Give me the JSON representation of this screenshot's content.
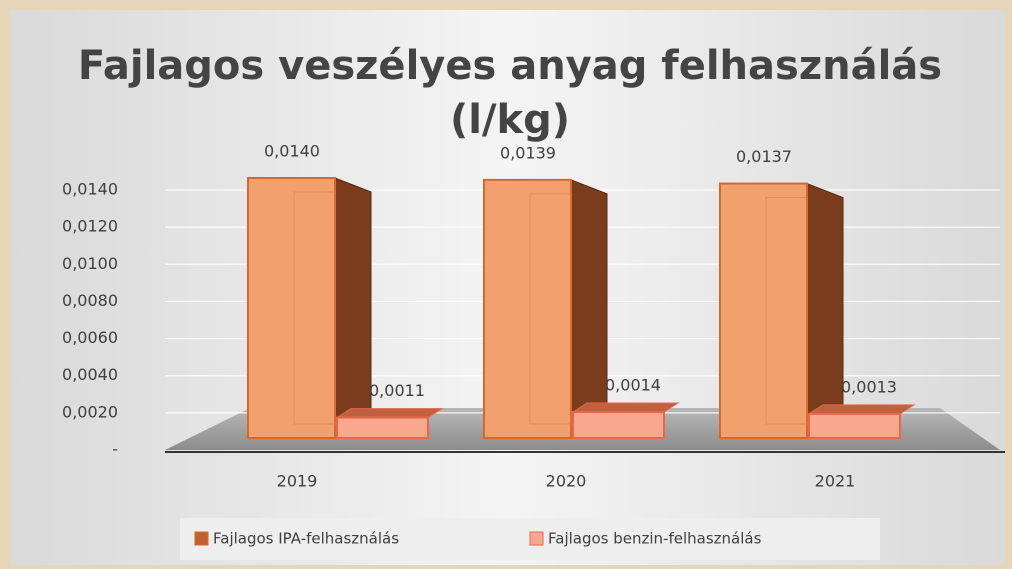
{
  "chart_data": {
    "type": "bar3d",
    "title": [
      "Fajlagos veszélyes anyag felhasználás",
      "(l/kg)"
    ],
    "categories": [
      "2019",
      "2020",
      "2021"
    ],
    "series": [
      {
        "name": "Fajlagos IPA-felhasználás",
        "color": "#f2a16e",
        "values": [
          0.014,
          0.0139,
          0.0137
        ],
        "value_labels": [
          "0,0140",
          "0,0139",
          "0,0137"
        ]
      },
      {
        "name": "Fajlagos benzin-felhasználás",
        "color": "#f7a88d",
        "values": [
          0.0011,
          0.0014,
          0.0013
        ],
        "value_labels": [
          "0,0011",
          "0,0014",
          "0,0013"
        ]
      }
    ],
    "ylim": [
      0,
      0.014
    ],
    "yticks": [
      {
        "value": 0,
        "label": "-"
      },
      {
        "value": 0.002,
        "label": "0,0020"
      },
      {
        "value": 0.004,
        "label": "0,0040"
      },
      {
        "value": 0.006,
        "label": "0,0060"
      },
      {
        "value": 0.008,
        "label": "0,0080"
      },
      {
        "value": 0.01,
        "label": "0,0100"
      },
      {
        "value": 0.012,
        "label": "0,0120"
      },
      {
        "value": 0.014,
        "label": "0,0140"
      }
    ],
    "grid": true,
    "legend": "bottom"
  }
}
